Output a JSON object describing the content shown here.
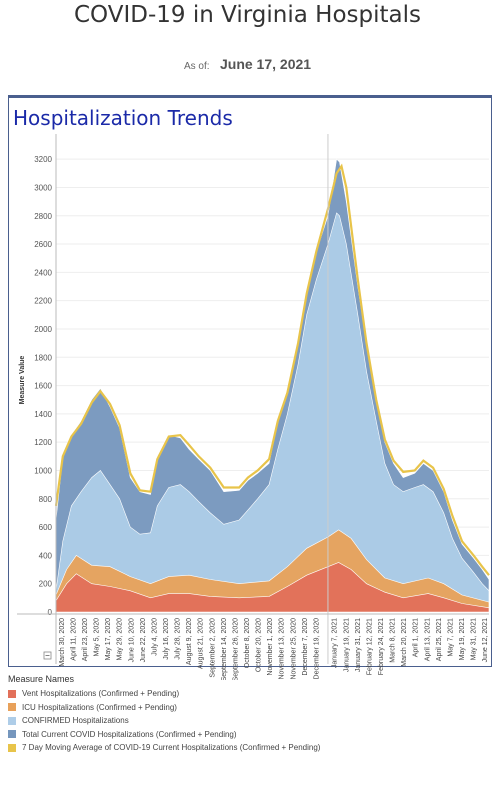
{
  "page": {
    "title": "COVID-19 in Virginia Hospitals",
    "as_of_label": "As of:",
    "as_of_date": "June 17, 2021"
  },
  "panel": {
    "title": "Hospitalization Trends"
  },
  "legend": {
    "title": "Measure Names",
    "items": [
      {
        "label": "Vent Hospitalizations (Confirmed + Pending)",
        "color": "#e2705a"
      },
      {
        "label": "ICU Hospitalizations (Confirmed + Pending)",
        "color": "#e8a15a"
      },
      {
        "label": "CONFIRMED Hospitalizations",
        "color": "#aecde8"
      },
      {
        "label": "Total Current COVID Hospitalizations (Confirmed + Pending)",
        "color": "#7596bd"
      },
      {
        "label": "7 Day Moving Average of COVID-19 Current Hospitalizations (Confirmed + Pending)",
        "color": "#e8c44a"
      }
    ]
  },
  "chart_data": {
    "type": "area",
    "title": "Hospitalization Trends",
    "ylabel": "Measure Value",
    "xlabel": "",
    "ylim": [
      0,
      3300
    ],
    "yticks": [
      0,
      200,
      400,
      600,
      800,
      1000,
      1200,
      1400,
      1600,
      1800,
      2000,
      2200,
      2400,
      2600,
      2800,
      3000,
      3200
    ],
    "x_range": [
      "2020-03-25",
      "2021-06-17"
    ],
    "x_tick_labels": [
      "March 30, 2020",
      "April 11, 2020",
      "April 23, 2020",
      "May 5, 2020",
      "May 17, 2020",
      "May 29, 2020",
      "June 10, 2020",
      "June 22, 2020",
      "July 4, 2020",
      "July 16, 2020",
      "July 28, 2020",
      "August 9, 2020",
      "August 21, 2020",
      "September 2, 2020",
      "September 14, 2020",
      "September 26, 2020",
      "October 8, 2020",
      "October 20, 2020",
      "November 1, 2020",
      "November 13, 2020",
      "November 25, 2020",
      "December 7, 2020",
      "December 19, 2020",
      "January 7, 2021",
      "January 19, 2021",
      "January 31, 2021",
      "February 12, 2021",
      "February 24, 2021",
      "March 8, 2021",
      "March 20, 2021",
      "April 1, 2021",
      "April 13, 2021",
      "April 25, 2021",
      "May 7, 2021",
      "May 19, 2021",
      "May 31, 2021",
      "June 12, 2021"
    ],
    "x_tick_dates": [
      "2020-03-30",
      "2020-04-11",
      "2020-04-23",
      "2020-05-05",
      "2020-05-17",
      "2020-05-29",
      "2020-06-10",
      "2020-06-22",
      "2020-07-04",
      "2020-07-16",
      "2020-07-28",
      "2020-08-09",
      "2020-08-21",
      "2020-09-02",
      "2020-09-14",
      "2020-09-26",
      "2020-10-08",
      "2020-10-20",
      "2020-11-01",
      "2020-11-13",
      "2020-11-25",
      "2020-12-07",
      "2020-12-19",
      "2021-01-07",
      "2021-01-19",
      "2021-01-31",
      "2021-02-12",
      "2021-02-24",
      "2021-03-08",
      "2021-03-20",
      "2021-04-01",
      "2021-04-13",
      "2021-04-25",
      "2021-05-07",
      "2021-05-19",
      "2021-05-31",
      "2021-06-12"
    ],
    "divider_date": "2021-01-01",
    "grid": true,
    "legend_position": "bottom",
    "series": [
      {
        "name": "Total Current COVID Hospitalizations (Confirmed + Pending)",
        "dates": [
          "2020-03-25",
          "2020-04-01",
          "2020-04-10",
          "2020-04-20",
          "2020-05-01",
          "2020-05-10",
          "2020-05-20",
          "2020-05-30",
          "2020-06-10",
          "2020-06-20",
          "2020-07-01",
          "2020-07-08",
          "2020-07-20",
          "2020-08-01",
          "2020-08-10",
          "2020-08-20",
          "2020-09-01",
          "2020-09-15",
          "2020-10-01",
          "2020-10-10",
          "2020-10-20",
          "2020-11-01",
          "2020-11-10",
          "2020-11-20",
          "2020-12-01",
          "2020-12-10",
          "2020-12-20",
          "2021-01-01",
          "2021-01-10",
          "2021-01-13",
          "2021-01-20",
          "2021-02-01",
          "2021-02-10",
          "2021-02-20",
          "2021-03-01",
          "2021-03-10",
          "2021-03-20",
          "2021-04-01",
          "2021-04-10",
          "2021-04-20",
          "2021-05-01",
          "2021-05-10",
          "2021-05-20",
          "2021-06-01",
          "2021-06-10",
          "2021-06-17"
        ],
        "values": [
          650,
          1100,
          1250,
          1350,
          1500,
          1580,
          1450,
          1300,
          950,
          850,
          830,
          1100,
          1250,
          1230,
          1150,
          1080,
          1000,
          850,
          860,
          930,
          980,
          1050,
          1350,
          1550,
          1900,
          2250,
          2550,
          2800,
          3200,
          3180,
          2900,
          2300,
          1900,
          1500,
          1200,
          1050,
          950,
          980,
          1050,
          1000,
          850,
          650,
          480,
          380,
          300,
          230
        ]
      },
      {
        "name": "CONFIRMED Hospitalizations",
        "dates": [
          "2020-03-25",
          "2020-04-01",
          "2020-04-10",
          "2020-04-20",
          "2020-05-01",
          "2020-05-10",
          "2020-05-20",
          "2020-05-30",
          "2020-06-10",
          "2020-06-20",
          "2020-07-01",
          "2020-07-08",
          "2020-07-20",
          "2020-08-01",
          "2020-08-10",
          "2020-08-20",
          "2020-09-01",
          "2020-09-15",
          "2020-10-01",
          "2020-10-10",
          "2020-10-20",
          "2020-11-01",
          "2020-11-10",
          "2020-11-20",
          "2020-12-01",
          "2020-12-10",
          "2020-12-20",
          "2021-01-01",
          "2021-01-10",
          "2021-01-13",
          "2021-01-20",
          "2021-02-01",
          "2021-02-10",
          "2021-02-20",
          "2021-03-01",
          "2021-03-10",
          "2021-03-20",
          "2021-04-01",
          "2021-04-10",
          "2021-04-20",
          "2021-05-01",
          "2021-05-10",
          "2021-05-20",
          "2021-06-01",
          "2021-06-10",
          "2021-06-17"
        ],
        "values": [
          150,
          500,
          750,
          850,
          950,
          1000,
          900,
          800,
          600,
          550,
          560,
          750,
          880,
          900,
          850,
          780,
          700,
          620,
          650,
          720,
          800,
          900,
          1150,
          1400,
          1750,
          2100,
          2350,
          2600,
          2820,
          2800,
          2600,
          2100,
          1700,
          1350,
          1050,
          900,
          850,
          880,
          900,
          850,
          700,
          520,
          380,
          280,
          200,
          150
        ]
      },
      {
        "name": "ICU Hospitalizations (Confirmed + Pending)",
        "dates": [
          "2020-03-25",
          "2020-04-05",
          "2020-04-15",
          "2020-05-01",
          "2020-05-20",
          "2020-06-10",
          "2020-07-01",
          "2020-07-20",
          "2020-08-10",
          "2020-09-01",
          "2020-10-01",
          "2020-11-01",
          "2020-11-20",
          "2020-12-10",
          "2021-01-01",
          "2021-01-12",
          "2021-01-25",
          "2021-02-10",
          "2021-03-01",
          "2021-03-20",
          "2021-04-15",
          "2021-05-01",
          "2021-05-20",
          "2021-06-17"
        ],
        "values": [
          120,
          300,
          400,
          330,
          320,
          250,
          200,
          250,
          260,
          230,
          200,
          220,
          320,
          450,
          530,
          580,
          520,
          370,
          240,
          200,
          240,
          200,
          120,
          70
        ]
      },
      {
        "name": "Vent Hospitalizations (Confirmed + Pending)",
        "dates": [
          "2020-03-25",
          "2020-04-05",
          "2020-04-15",
          "2020-05-01",
          "2020-05-20",
          "2020-06-10",
          "2020-07-01",
          "2020-07-20",
          "2020-08-10",
          "2020-09-01",
          "2020-10-01",
          "2020-11-01",
          "2020-11-20",
          "2020-12-10",
          "2021-01-01",
          "2021-01-12",
          "2021-01-25",
          "2021-02-10",
          "2021-03-01",
          "2021-03-20",
          "2021-04-15",
          "2021-05-01",
          "2021-05-20",
          "2021-06-17"
        ],
        "values": [
          80,
          200,
          270,
          200,
          180,
          150,
          100,
          130,
          130,
          110,
          100,
          110,
          180,
          260,
          320,
          350,
          300,
          200,
          140,
          100,
          130,
          100,
          60,
          30
        ]
      },
      {
        "name": "7 Day Moving Average of COVID-19 Current Hospitalizations (Confirmed + Pending)",
        "dates": [
          "2020-03-25",
          "2020-04-01",
          "2020-04-10",
          "2020-04-20",
          "2020-05-01",
          "2020-05-10",
          "2020-05-20",
          "2020-05-30",
          "2020-06-10",
          "2020-06-20",
          "2020-07-01",
          "2020-07-08",
          "2020-07-20",
          "2020-08-01",
          "2020-08-10",
          "2020-08-20",
          "2020-09-01",
          "2020-09-15",
          "2020-10-01",
          "2020-10-10",
          "2020-10-20",
          "2020-11-01",
          "2020-11-10",
          "2020-11-20",
          "2020-12-01",
          "2020-12-10",
          "2020-12-20",
          "2021-01-01",
          "2021-01-10",
          "2021-01-15",
          "2021-01-20",
          "2021-02-01",
          "2021-02-10",
          "2021-02-20",
          "2021-03-01",
          "2021-03-10",
          "2021-03-20",
          "2021-04-01",
          "2021-04-10",
          "2021-04-20",
          "2021-05-01",
          "2021-05-10",
          "2021-05-20",
          "2021-06-01",
          "2021-06-10",
          "2021-06-17"
        ],
        "values": [
          750,
          1100,
          1240,
          1330,
          1480,
          1560,
          1470,
          1320,
          980,
          860,
          850,
          1080,
          1240,
          1250,
          1180,
          1100,
          1020,
          880,
          880,
          950,
          1000,
          1080,
          1350,
          1550,
          1900,
          2250,
          2550,
          2850,
          3100,
          3150,
          3000,
          2350,
          1900,
          1500,
          1220,
          1070,
          990,
          1000,
          1070,
          1020,
          870,
          680,
          500,
          400,
          320,
          260
        ]
      }
    ]
  }
}
